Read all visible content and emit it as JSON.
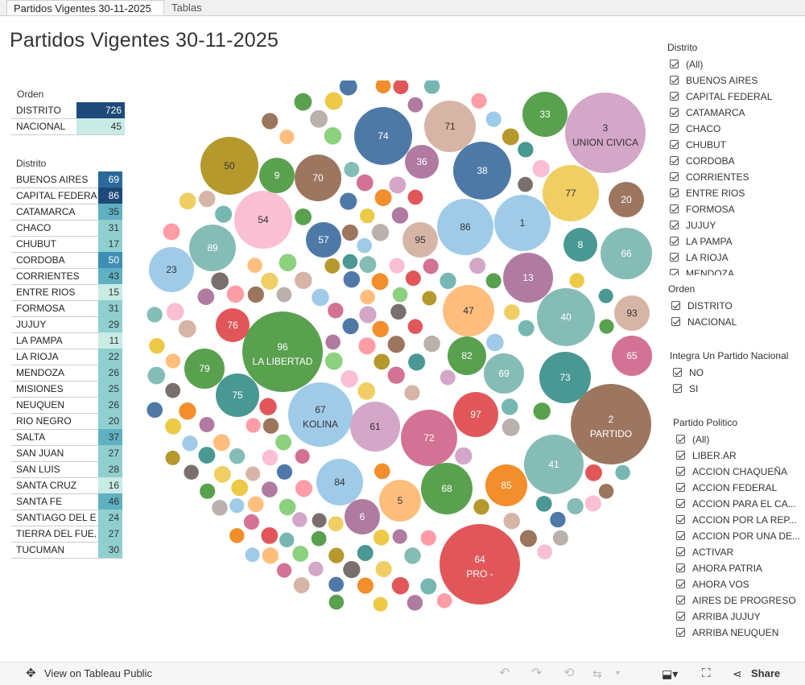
{
  "tabs": [
    "Partidos Vigentes 30-11-2025",
    "Tablas"
  ],
  "title": "Partidos Vigentes 30-11-2025",
  "orden_table": {
    "title": "Orden",
    "rows": [
      {
        "label": "DISTRITO",
        "value": "726"
      },
      {
        "label": "NACIONAL",
        "value": "45"
      }
    ]
  },
  "distrito_table": {
    "title": "Distrito",
    "rows": [
      {
        "label": "BUENOS AIRES",
        "value": "69"
      },
      {
        "label": "CAPITAL FEDERAL",
        "value": "86"
      },
      {
        "label": "CATAMARCA",
        "value": "35"
      },
      {
        "label": "CHACO",
        "value": "31"
      },
      {
        "label": "CHUBUT",
        "value": "17"
      },
      {
        "label": "CORDOBA",
        "value": "50"
      },
      {
        "label": "CORRIENTES",
        "value": "43"
      },
      {
        "label": "ENTRE RIOS",
        "value": "15"
      },
      {
        "label": "FORMOSA",
        "value": "31"
      },
      {
        "label": "JUJUY",
        "value": "29"
      },
      {
        "label": "LA PAMPA",
        "value": "11"
      },
      {
        "label": "LA RIOJA",
        "value": "22"
      },
      {
        "label": "MENDOZA",
        "value": "26"
      },
      {
        "label": "MISIONES",
        "value": "25"
      },
      {
        "label": "NEUQUEN",
        "value": "26"
      },
      {
        "label": "RIO NEGRO",
        "value": "20"
      },
      {
        "label": "SALTA",
        "value": "37"
      },
      {
        "label": "SAN JUAN",
        "value": "27"
      },
      {
        "label": "SAN LUIS",
        "value": "28"
      },
      {
        "label": "SANTA CRUZ",
        "value": "16"
      },
      {
        "label": "SANTA FE",
        "value": "46"
      },
      {
        "label": "SANTIAGO DEL E..",
        "value": "24"
      },
      {
        "label": "TIERRA DEL FUE..",
        "value": "27"
      },
      {
        "label": "TUCUMAN",
        "value": "30"
      }
    ]
  },
  "filters": {
    "distrito": {
      "title": "Distrito",
      "items": [
        "(All)",
        "BUENOS AIRES",
        "CAPITAL FEDERAL",
        "CATAMARCA",
        "CHACO",
        "CHUBUT",
        "CORDOBA",
        "CORRIENTES",
        "ENTRE RIOS",
        "FORMOSA",
        "JUJUY",
        "LA PAMPA",
        "LA RIOJA",
        "MENDOZA"
      ]
    },
    "orden": {
      "title": "Orden",
      "items": [
        "DISTRITO",
        "NACIONAL"
      ]
    },
    "integra": {
      "title": "Integra Un Partido Nacional",
      "items": [
        "NO",
        "SI"
      ]
    },
    "partido": {
      "title": "Partido Politico",
      "items": [
        "(All)",
        " LIBER.AR",
        "ACCION CHAQUEÑA",
        "ACCION FEDERAL",
        "ACCION PARA EL CA...",
        "ACCION POR LA REP...",
        "ACCION POR UNA DE...",
        "ACTIVAR",
        "AHORA PATRIA",
        "AHORA VOS",
        "AIRES DE PROGRESO",
        "ARRIBA JUJUY",
        "ARRIBA NEUQUEN"
      ]
    }
  },
  "bubbles": [
    {
      "label": "64",
      "sub": "PRO -",
      "color": "#e15759"
    },
    {
      "label": "96",
      "sub": "LA LIBERTAD",
      "color": "#59a14f"
    },
    {
      "label": "3",
      "sub": "UNION CIVICA",
      "color": "#d4a6c8"
    },
    {
      "label": "2",
      "sub": "PARTIDO",
      "color": "#9d7660"
    },
    {
      "label": "67",
      "sub": "KOLINA",
      "color": "#a0cbe8"
    },
    {
      "label": "74",
      "sub": "",
      "color": "#4e79a7"
    },
    {
      "label": "38",
      "sub": "",
      "color": "#4e79a7"
    },
    {
      "label": "40",
      "sub": "",
      "color": "#86bcb6"
    },
    {
      "label": "41",
      "sub": "",
      "color": "#86bcb6"
    },
    {
      "label": "1",
      "sub": "",
      "color": "#a0cbe8"
    },
    {
      "label": "86",
      "sub": "",
      "color": "#a0cbe8"
    },
    {
      "label": "50",
      "sub": "",
      "color": "#b6992d"
    },
    {
      "label": "54",
      "sub": "",
      "color": "#fabfd2"
    },
    {
      "label": "72",
      "sub": "",
      "color": "#d37295"
    },
    {
      "label": "68",
      "sub": "",
      "color": "#59a14f"
    },
    {
      "label": "13",
      "sub": "",
      "color": "#b07aa1"
    },
    {
      "label": "77",
      "sub": "",
      "color": "#f1ce63"
    },
    {
      "label": "71",
      "sub": "",
      "color": "#d7b5a6"
    },
    {
      "label": "47",
      "sub": "",
      "color": "#ffbe7d"
    },
    {
      "label": "73",
      "sub": "",
      "color": "#499894"
    },
    {
      "label": "61",
      "sub": "",
      "color": "#d4a6c8"
    },
    {
      "label": "84",
      "sub": "",
      "color": "#a0cbe8"
    },
    {
      "label": "70",
      "sub": "",
      "color": "#9d7660"
    },
    {
      "label": "66",
      "sub": "",
      "color": "#86bcb6"
    },
    {
      "label": "89",
      "sub": "",
      "color": "#86bcb6"
    },
    {
      "label": "23",
      "sub": "",
      "color": "#a0cbe8"
    },
    {
      "label": "97",
      "sub": "",
      "color": "#e15759"
    },
    {
      "label": "69",
      "sub": "",
      "color": "#86bcb6"
    },
    {
      "label": "33",
      "sub": "",
      "color": "#59a14f"
    },
    {
      "label": "95",
      "sub": "",
      "color": "#d7b5a6"
    },
    {
      "label": "85",
      "sub": "",
      "color": "#f28e2b"
    },
    {
      "label": "75",
      "sub": "",
      "color": "#499894"
    },
    {
      "label": "79",
      "sub": "",
      "color": "#59a14f"
    },
    {
      "label": "93",
      "sub": "",
      "color": "#d7b5a6"
    },
    {
      "label": "5",
      "sub": "",
      "color": "#ffbe7d"
    },
    {
      "label": "65",
      "sub": "",
      "color": "#d37295"
    },
    {
      "label": "82",
      "sub": "",
      "color": "#59a14f"
    },
    {
      "label": "76",
      "sub": "",
      "color": "#e15759"
    },
    {
      "label": "57",
      "sub": "",
      "color": "#4e79a7"
    },
    {
      "label": "36",
      "sub": "",
      "color": "#b07aa1"
    },
    {
      "label": "8",
      "sub": "",
      "color": "#499894"
    },
    {
      "label": "6",
      "sub": "",
      "color": "#b07aa1"
    },
    {
      "label": "9",
      "sub": "",
      "color": "#59a14f"
    },
    {
      "label": "20",
      "sub": "",
      "color": "#9d7660"
    }
  ],
  "bottom": {
    "view": "View on Tableau Public",
    "share": "Share"
  },
  "colors": {
    "value_scale": [
      "#c8ebe6",
      "#8fd0cf",
      "#5fb1c2",
      "#3e8fb3",
      "#2a6a9b",
      "#1d4a7a"
    ]
  }
}
